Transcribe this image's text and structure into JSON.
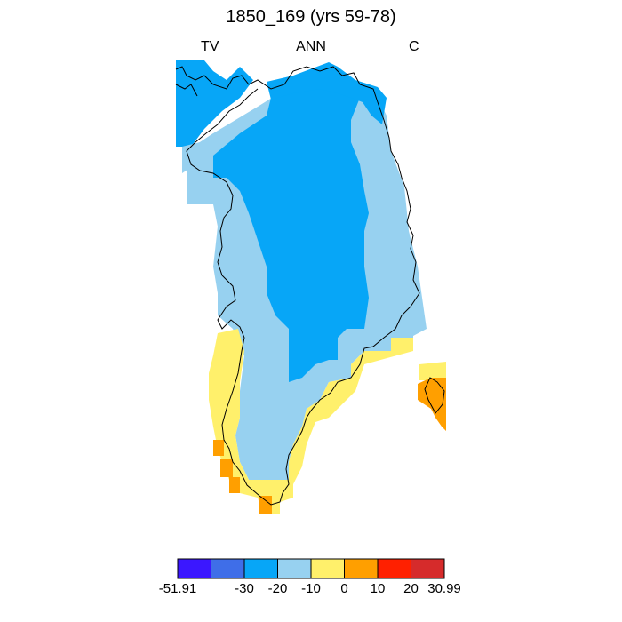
{
  "title": "1850_169 (yrs 59-78)",
  "subtitle_left": "TV",
  "subtitle_center": "ANN",
  "subtitle_right": "C",
  "colors": {
    "below_-30": "#3b17ff",
    "-30_to_-20_dark": "#3f6ee8",
    "-30_to_-20": "#07a6f7",
    "-20_to_-10": "#97d1f0",
    "-10_to_0": "#fff06b",
    "0_to_10": "#ff9f00",
    "10_to_20": "#ff2000",
    "above_20": "#d62b2b",
    "coastline": "#000000"
  },
  "colorbar": {
    "colors": [
      "#3b17ff",
      "#3f6ee8",
      "#07a6f7",
      "#97d1f0",
      "#fff06b",
      "#ff9f00",
      "#ff2000",
      "#d62b2b"
    ],
    "labels": [
      "-51.91",
      "-30",
      "-20",
      "-10",
      "0",
      "10",
      "20",
      "30.99"
    ]
  }
}
